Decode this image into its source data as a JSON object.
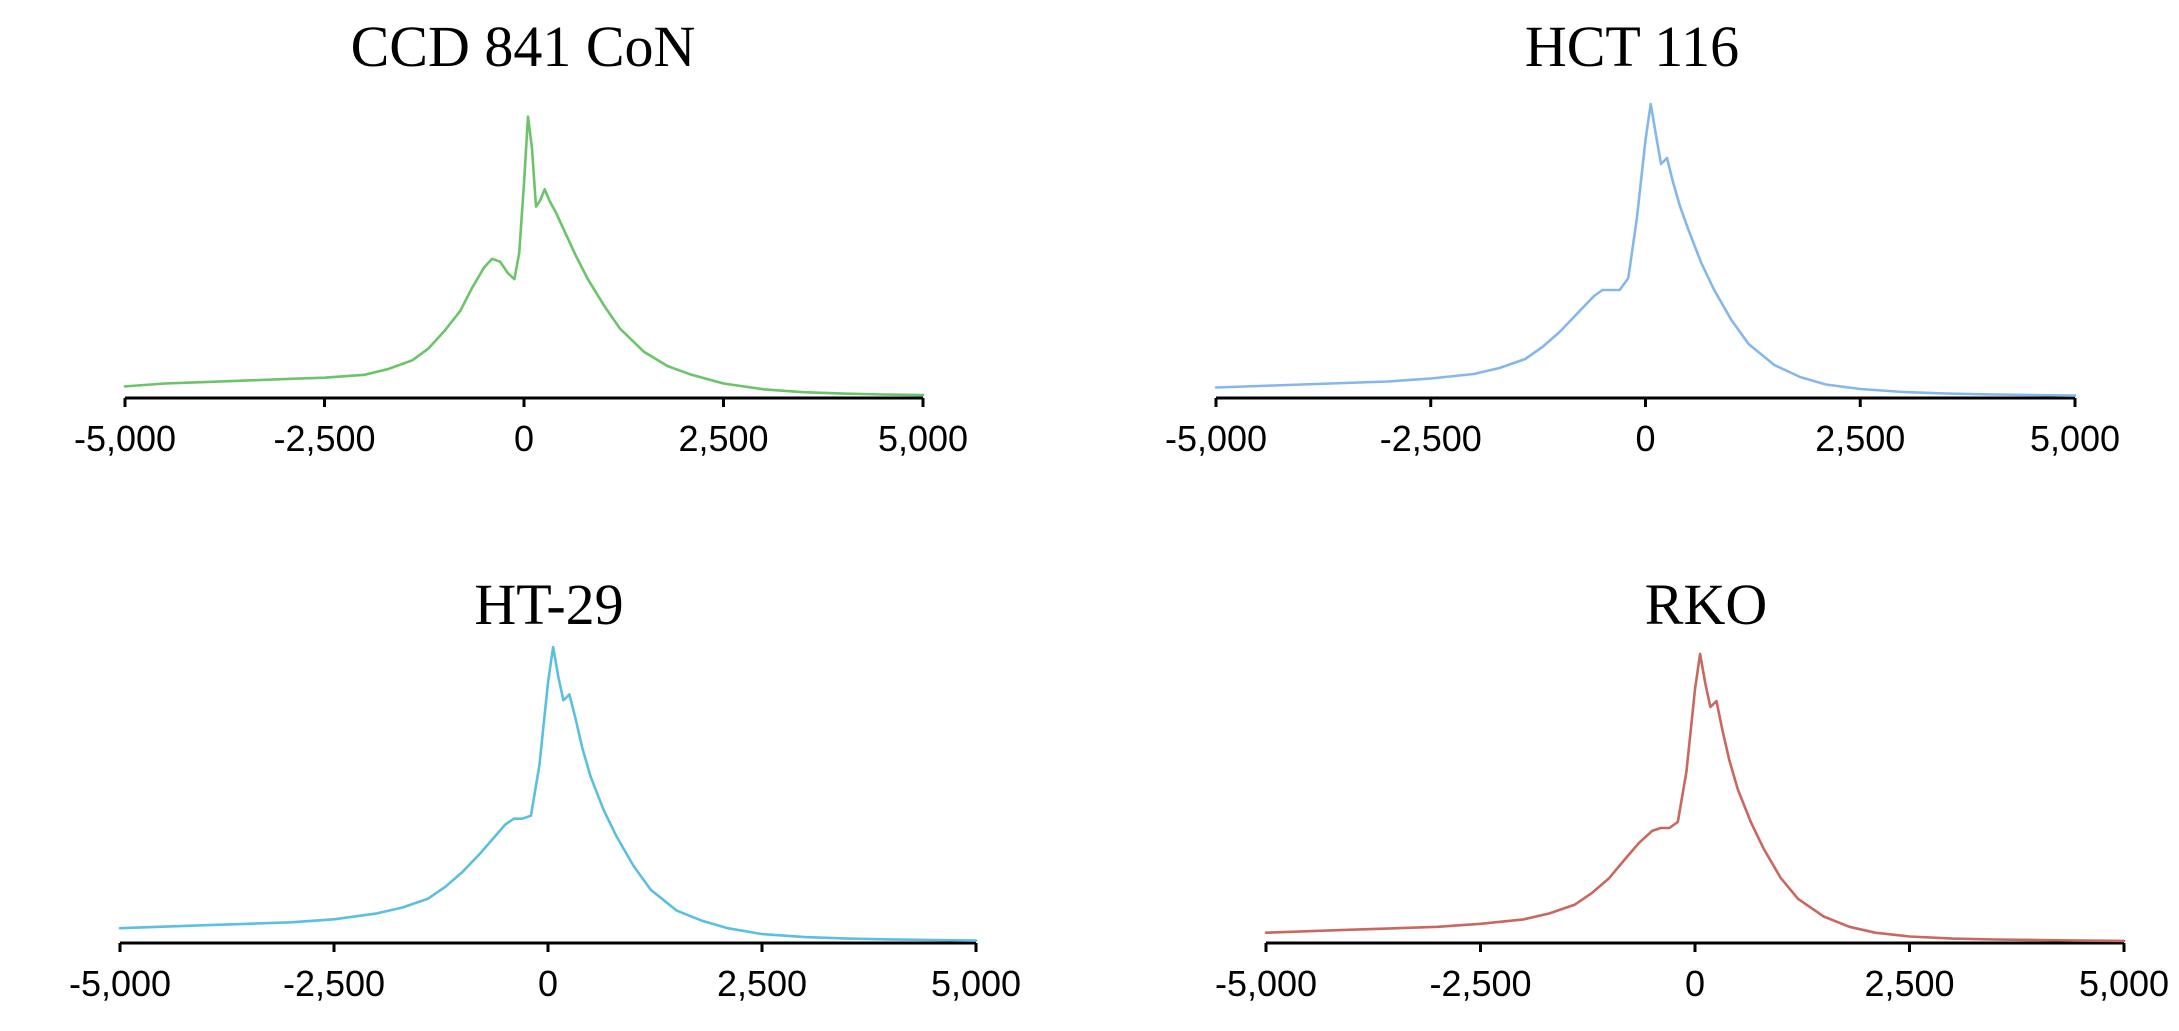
{
  "chart_data": [
    {
      "type": "line",
      "title": "CCD 841 CoN",
      "color": "#6cc46a",
      "xlim": [
        -5000,
        5000
      ],
      "ylim": [
        0,
        1.0
      ],
      "xticks": [
        -5000,
        -2500,
        0,
        2500,
        5000
      ],
      "xtick_labels": [
        "-5,000",
        "-2,500",
        "0",
        "2,500",
        "5,000"
      ],
      "grid": false,
      "x": [
        -5000,
        -4500,
        -4000,
        -3500,
        -3000,
        -2500,
        -2000,
        -1700,
        -1400,
        -1200,
        -1000,
        -800,
        -650,
        -500,
        -400,
        -300,
        -200,
        -120,
        -60,
        0,
        50,
        100,
        150,
        200,
        260,
        320,
        400,
        500,
        650,
        800,
        1000,
        1200,
        1500,
        1800,
        2100,
        2500,
        3000,
        3500,
        4000,
        4500,
        5000
      ],
      "y": [
        0.04,
        0.05,
        0.055,
        0.06,
        0.065,
        0.07,
        0.08,
        0.1,
        0.13,
        0.17,
        0.23,
        0.3,
        0.38,
        0.45,
        0.48,
        0.47,
        0.43,
        0.41,
        0.5,
        0.74,
        0.97,
        0.86,
        0.66,
        0.68,
        0.72,
        0.68,
        0.64,
        0.58,
        0.49,
        0.41,
        0.32,
        0.24,
        0.16,
        0.11,
        0.08,
        0.05,
        0.03,
        0.02,
        0.015,
        0.012,
        0.01
      ]
    },
    {
      "type": "line",
      "title": "HCT 116",
      "color": "#86b7ea",
      "xlim": [
        -5000,
        5000
      ],
      "ylim": [
        0,
        1.0
      ],
      "xticks": [
        -5000,
        -2500,
        0,
        2500,
        5000
      ],
      "xtick_labels": [
        "-5,000",
        "-2,500",
        "0",
        "2,500",
        "5,000"
      ],
      "grid": false,
      "x": [
        -5000,
        -4500,
        -4000,
        -3500,
        -3000,
        -2500,
        -2000,
        -1700,
        -1400,
        -1200,
        -1000,
        -800,
        -600,
        -500,
        -400,
        -300,
        -200,
        -100,
        0,
        60,
        120,
        180,
        250,
        320,
        400,
        500,
        650,
        800,
        1000,
        1200,
        1500,
        1800,
        2100,
        2500,
        3000,
        3500,
        4000,
        4500,
        5000
      ],
      "y": [
        0.035,
        0.04,
        0.045,
        0.05,
        0.055,
        0.065,
        0.08,
        0.1,
        0.13,
        0.17,
        0.22,
        0.28,
        0.34,
        0.36,
        0.36,
        0.36,
        0.4,
        0.6,
        0.86,
        0.98,
        0.88,
        0.78,
        0.8,
        0.72,
        0.64,
        0.56,
        0.45,
        0.36,
        0.26,
        0.18,
        0.11,
        0.07,
        0.045,
        0.03,
        0.02,
        0.015,
        0.012,
        0.01,
        0.008
      ]
    },
    {
      "type": "line",
      "title": "HT-29",
      "color": "#5bbfe0",
      "xlim": [
        -5000,
        5000
      ],
      "ylim": [
        0,
        1.0
      ],
      "xticks": [
        -5000,
        -2500,
        0,
        2500,
        5000
      ],
      "xtick_labels": [
        "-5,000",
        "-2,500",
        "0",
        "2,500",
        "5,000"
      ],
      "grid": false,
      "x": [
        -5000,
        -4500,
        -4000,
        -3500,
        -3000,
        -2500,
        -2000,
        -1700,
        -1400,
        -1200,
        -1000,
        -800,
        -650,
        -500,
        -400,
        -300,
        -200,
        -100,
        0,
        60,
        120,
        180,
        250,
        320,
        400,
        500,
        650,
        800,
        1000,
        1200,
        1500,
        1800,
        2100,
        2500,
        3000,
        3500,
        4000,
        4500,
        5000
      ],
      "y": [
        0.05,
        0.055,
        0.06,
        0.065,
        0.07,
        0.08,
        0.1,
        0.12,
        0.15,
        0.19,
        0.24,
        0.3,
        0.35,
        0.4,
        0.42,
        0.42,
        0.43,
        0.6,
        0.88,
        1.0,
        0.9,
        0.82,
        0.84,
        0.76,
        0.66,
        0.56,
        0.45,
        0.36,
        0.26,
        0.18,
        0.11,
        0.075,
        0.05,
        0.03,
        0.02,
        0.015,
        0.012,
        0.01,
        0.008
      ]
    },
    {
      "type": "line",
      "title": "RKO",
      "color": "#c8685f",
      "xlim": [
        -5000,
        5000
      ],
      "ylim": [
        0,
        1.0
      ],
      "xticks": [
        -5000,
        -2500,
        0,
        2500,
        5000
      ],
      "xtick_labels": [
        "-5,000",
        "-2,500",
        "0",
        "2,500",
        "5,000"
      ],
      "grid": false,
      "x": [
        -5000,
        -4500,
        -4000,
        -3500,
        -3000,
        -2500,
        -2000,
        -1700,
        -1400,
        -1200,
        -1000,
        -800,
        -650,
        -500,
        -400,
        -300,
        -200,
        -100,
        0,
        60,
        120,
        180,
        250,
        320,
        400,
        500,
        650,
        800,
        1000,
        1200,
        1500,
        1800,
        2100,
        2500,
        3000,
        3500,
        4000,
        4500,
        5000
      ],
      "y": [
        0.035,
        0.04,
        0.045,
        0.05,
        0.055,
        0.065,
        0.08,
        0.1,
        0.13,
        0.17,
        0.22,
        0.29,
        0.34,
        0.38,
        0.39,
        0.39,
        0.41,
        0.58,
        0.86,
        0.98,
        0.88,
        0.8,
        0.82,
        0.72,
        0.62,
        0.52,
        0.41,
        0.32,
        0.22,
        0.15,
        0.09,
        0.055,
        0.035,
        0.022,
        0.015,
        0.012,
        0.01,
        0.008,
        0.007
      ]
    }
  ]
}
